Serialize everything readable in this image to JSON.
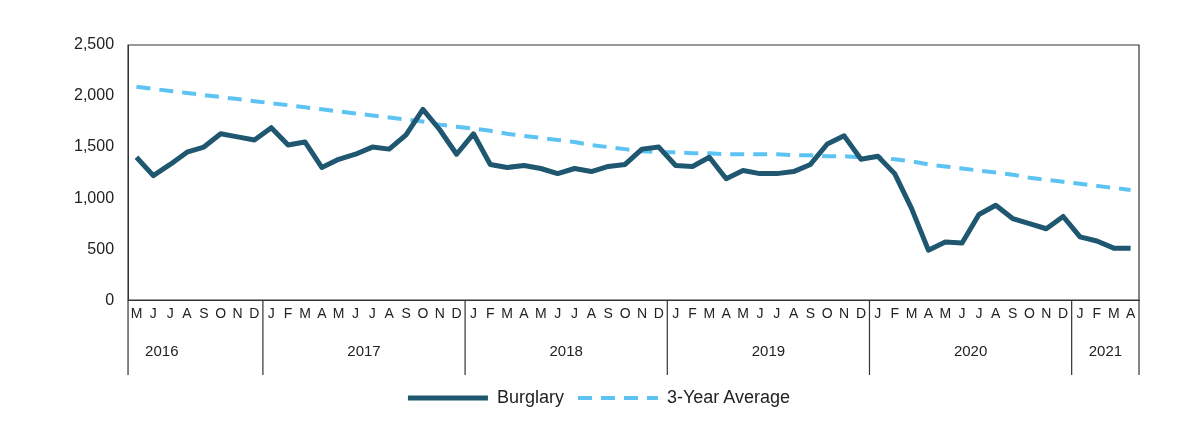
{
  "chart_data": {
    "type": "line",
    "categories": [
      "M",
      "J",
      "J",
      "A",
      "S",
      "O",
      "N",
      "D",
      "J",
      "F",
      "M",
      "A",
      "M",
      "J",
      "J",
      "A",
      "S",
      "O",
      "N",
      "D",
      "J",
      "F",
      "M",
      "A",
      "M",
      "J",
      "J",
      "A",
      "S",
      "O",
      "N",
      "D",
      "J",
      "F",
      "M",
      "A",
      "M",
      "J",
      "J",
      "A",
      "S",
      "O",
      "N",
      "D",
      "J",
      "F",
      "M",
      "A",
      "M",
      "J",
      "J",
      "A",
      "S",
      "O",
      "N",
      "D",
      "J",
      "F",
      "M",
      "A"
    ],
    "series": [
      {
        "name": "Burglary",
        "color": "#1f5670",
        "line_style": "solid",
        "values": [
          1400,
          1220,
          1330,
          1450,
          1500,
          1630,
          1600,
          1570,
          1690,
          1520,
          1550,
          1300,
          1380,
          1430,
          1500,
          1480,
          1620,
          1870,
          1670,
          1430,
          1630,
          1330,
          1300,
          1320,
          1290,
          1240,
          1290,
          1260,
          1310,
          1330,
          1480,
          1500,
          1320,
          1310,
          1400,
          1190,
          1270,
          1240,
          1240,
          1260,
          1330,
          1530,
          1610,
          1380,
          1410,
          1240,
          900,
          490,
          570,
          560,
          840,
          930,
          800,
          750,
          700,
          820,
          620,
          580,
          510,
          510
        ]
      },
      {
        "name": "3-Year Average",
        "color": "#5cc3f2",
        "line_style": "dashed",
        "values": [
          2090,
          2070,
          2050,
          2030,
          2010,
          1990,
          1970,
          1950,
          1930,
          1910,
          1890,
          1870,
          1850,
          1830,
          1810,
          1790,
          1770,
          1750,
          1720,
          1700,
          1680,
          1660,
          1630,
          1610,
          1590,
          1570,
          1550,
          1520,
          1500,
          1480,
          1460,
          1450,
          1450,
          1440,
          1440,
          1430,
          1430,
          1430,
          1430,
          1420,
          1420,
          1410,
          1410,
          1400,
          1400,
          1380,
          1360,
          1330,
          1310,
          1290,
          1270,
          1250,
          1230,
          1200,
          1180,
          1160,
          1140,
          1120,
          1100,
          1080
        ]
      }
    ],
    "ylim": [
      0,
      2500
    ],
    "yticks": [
      {
        "value": 0,
        "label": "0"
      },
      {
        "value": 500,
        "label": "500"
      },
      {
        "value": 1000,
        "label": "1,000"
      },
      {
        "value": 1500,
        "label": "1,500"
      },
      {
        "value": 2000,
        "label": "2,000"
      },
      {
        "value": 2500,
        "label": "2,500"
      }
    ],
    "x2lim": [
      2016.333,
      2021.333
    ],
    "x2ticks": [
      {
        "value": 2016.5,
        "label": "2016"
      },
      {
        "value": 2017.5,
        "label": "2017"
      },
      {
        "value": 2018.5,
        "label": "2018"
      },
      {
        "value": 2019.5,
        "label": "2019"
      },
      {
        "value": 2020.5,
        "label": "2020"
      },
      {
        "value": 2021.167,
        "label": "2021"
      }
    ],
    "grid": false,
    "legend": "bottom",
    "marker": "none"
  }
}
